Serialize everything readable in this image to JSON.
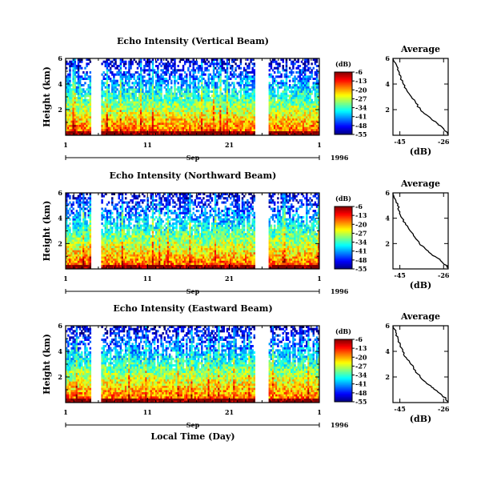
{
  "chart_data": [
    {
      "type": "heatmap",
      "title": "Echo Intensity (Vertical Beam)",
      "ylabel": "Height (km)",
      "ylim": [
        0,
        6
      ],
      "y_ticks": [
        "6",
        "4",
        "2"
      ],
      "xlim": [
        1,
        32
      ],
      "x_ticks": [
        "1",
        "11",
        "21",
        "1"
      ],
      "month_label": "Sep",
      "year_label": "1996",
      "colorbar": {
        "label": "(dB)",
        "ticks": [
          "-6",
          "-13",
          "-20",
          "-27",
          "-34",
          "-41",
          "-48",
          "-55"
        ],
        "range": [
          -55,
          -6
        ]
      },
      "data_gaps_days": [
        [
          4.2,
          5.3
        ],
        [
          24.2,
          25.9
        ]
      ],
      "profile": {
        "title": "Average",
        "xlabel": "(dB)",
        "x_ticks": [
          "-45",
          "-26"
        ],
        "xlim": [
          -48,
          -24
        ],
        "y_ticks": [
          "6",
          "4",
          "2"
        ],
        "ylim": [
          0,
          6
        ],
        "x": [
          -48.0,
          -46.5,
          -45.5,
          -44.5,
          -43.5,
          -42.0,
          -40.0,
          -38.0,
          -36.0,
          -33.5,
          -31.0,
          -28.5,
          -26.5,
          -25.0,
          -24.0
        ],
        "y": [
          6.0,
          5.5,
          5.0,
          4.5,
          4.0,
          3.5,
          3.0,
          2.5,
          2.0,
          1.6,
          1.2,
          0.9,
          0.6,
          0.3,
          0.05
        ]
      }
    },
    {
      "type": "heatmap",
      "title": "Echo Intensity (Northward Beam)",
      "ylabel": "Height (km)",
      "ylim": [
        0,
        6
      ],
      "y_ticks": [
        "6",
        "4",
        "2"
      ],
      "xlim": [
        1,
        32
      ],
      "x_ticks": [
        "1",
        "11",
        "21",
        "1"
      ],
      "month_label": "Sep",
      "year_label": "1996",
      "colorbar": {
        "label": "(dB)",
        "ticks": [
          "-6",
          "-13",
          "-20",
          "-27",
          "-34",
          "-41",
          "-48",
          "-55"
        ],
        "range": [
          -55,
          -6
        ]
      },
      "data_gaps_days": [
        [
          4.2,
          5.3
        ],
        [
          24.2,
          25.9
        ]
      ],
      "profile": {
        "title": "Average",
        "xlabel": "(dB)",
        "x_ticks": [
          "-45",
          "-26"
        ],
        "xlim": [
          -48,
          -24
        ],
        "y_ticks": [
          "6",
          "4",
          "2"
        ],
        "ylim": [
          0,
          6
        ],
        "x": [
          -48.0,
          -47.0,
          -46.0,
          -45.0,
          -44.0,
          -42.5,
          -40.5,
          -38.5,
          -36.5,
          -34.0,
          -31.5,
          -29.0,
          -27.0,
          -25.0,
          -24.0
        ],
        "y": [
          6.0,
          5.5,
          5.0,
          4.5,
          4.0,
          3.5,
          3.0,
          2.5,
          2.0,
          1.6,
          1.2,
          0.9,
          0.6,
          0.3,
          0.05
        ]
      }
    },
    {
      "type": "heatmap",
      "title": "Echo Intensity (Eastward Beam)",
      "ylabel": "Height (km)",
      "xlabel": "Local Time (Day)",
      "ylim": [
        0,
        6
      ],
      "y_ticks": [
        "6",
        "4",
        "2"
      ],
      "xlim": [
        1,
        32
      ],
      "x_ticks": [
        "1",
        "11",
        "21",
        "1"
      ],
      "month_label": "Sep",
      "year_label": "1996",
      "colorbar": {
        "label": "(dB)",
        "ticks": [
          "-6",
          "-13",
          "-20",
          "-27",
          "-34",
          "-41",
          "-48",
          "-55"
        ],
        "range": [
          -55,
          -6
        ]
      },
      "data_gaps_days": [
        [
          4.2,
          5.3
        ],
        [
          24.2,
          25.9
        ]
      ],
      "profile": {
        "title": "Average",
        "xlabel": "(dB)",
        "x_ticks": [
          "-45",
          "-26"
        ],
        "xlim": [
          -48,
          -24
        ],
        "y_ticks": [
          "6",
          "4",
          "2"
        ],
        "ylim": [
          0,
          6
        ],
        "x": [
          -48.0,
          -46.8,
          -45.8,
          -44.8,
          -43.8,
          -42.2,
          -40.2,
          -38.2,
          -36.2,
          -33.8,
          -31.2,
          -28.8,
          -26.8,
          -25.0,
          -24.0
        ],
        "y": [
          6.0,
          5.5,
          5.0,
          4.5,
          4.0,
          3.5,
          3.0,
          2.5,
          2.0,
          1.6,
          1.2,
          0.9,
          0.6,
          0.3,
          0.05
        ]
      }
    }
  ]
}
